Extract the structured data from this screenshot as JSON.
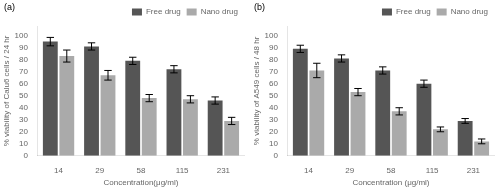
{
  "chart_data": [
    {
      "type": "bar",
      "annotations": [
        "(a)"
      ],
      "xlabel": "Concentration(μg/ml)",
      "ylabel": "% viability of Calu6 cells / 24 hr",
      "categories": [
        "14",
        "29",
        "58",
        "115",
        "231"
      ],
      "series": [
        {
          "name": "Free drug",
          "color": "#555555",
          "values": [
            95,
            91,
            79,
            72,
            46
          ],
          "errors": [
            3.5,
            3,
            3,
            3,
            3
          ]
        },
        {
          "name": "Nano drug",
          "color": "#aaaaaa",
          "values": [
            83,
            67,
            48,
            47,
            29
          ],
          "errors": [
            5,
            4,
            3,
            3,
            3
          ]
        }
      ],
      "ylim": [
        0,
        108
      ],
      "yticks": [
        0,
        10,
        20,
        30,
        40,
        50,
        60,
        70,
        80,
        90,
        100
      ],
      "grid": false,
      "legend": "upper right"
    },
    {
      "type": "bar",
      "annotations": [
        "(b)"
      ],
      "xlabel": "Concentration (μg/ml)",
      "ylabel": "% viability of A549 cells / 48 hr",
      "categories": [
        "14",
        "29",
        "58",
        "115",
        "231"
      ],
      "series": [
        {
          "name": "Free drug",
          "color": "#555555",
          "values": [
            89,
            81,
            71,
            60,
            29
          ],
          "errors": [
            3,
            3,
            3,
            3,
            2
          ]
        },
        {
          "name": "Nano drug",
          "color": "#aaaaaa",
          "values": [
            71,
            53,
            37,
            22,
            12
          ],
          "errors": [
            6,
            3,
            3,
            2,
            2
          ]
        }
      ],
      "ylim": [
        0,
        108
      ],
      "yticks": [
        0,
        10,
        20,
        30,
        40,
        50,
        60,
        70,
        80,
        90,
        100
      ],
      "grid": false,
      "legend": "upper right"
    }
  ]
}
